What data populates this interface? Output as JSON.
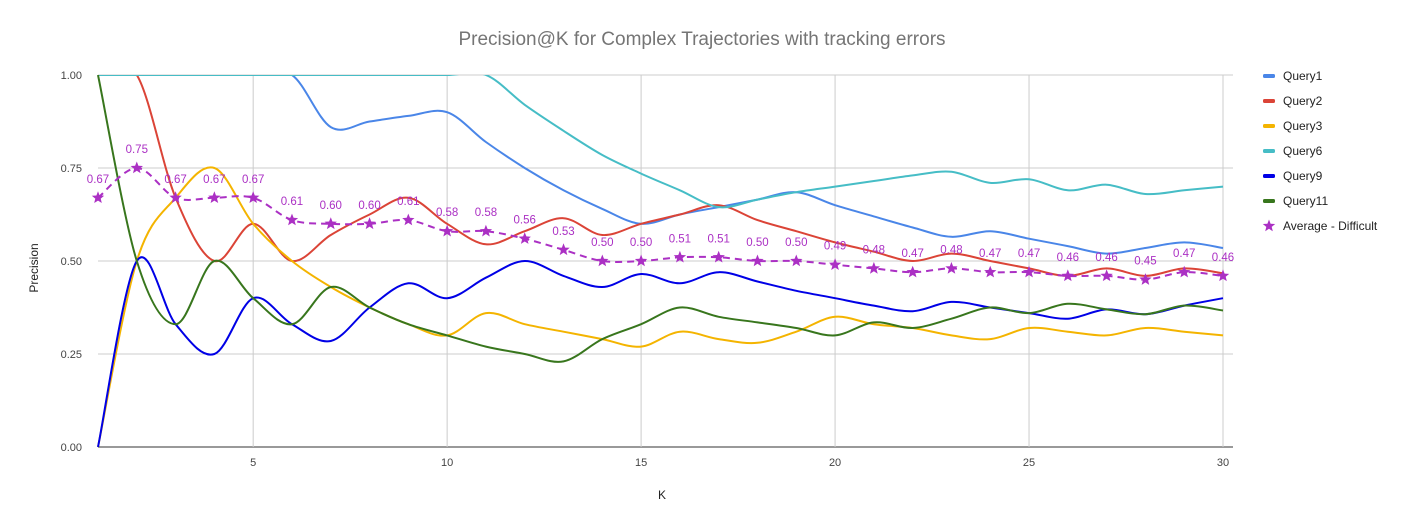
{
  "chart_data": {
    "type": "line",
    "title": "Precision@K for Complex Trajectories with tracking errors",
    "xlabel": "K",
    "ylabel": "Precision",
    "xlim": [
      1,
      30
    ],
    "ylim": [
      0,
      1
    ],
    "x_ticks": [
      "5",
      "10",
      "15",
      "20",
      "25",
      "30"
    ],
    "y_ticks": [
      "0.00",
      "0.25",
      "0.50",
      "0.75",
      "1.00"
    ],
    "grid": true,
    "legend_position": "right",
    "x": [
      1,
      2,
      3,
      4,
      5,
      6,
      7,
      8,
      9,
      10,
      11,
      12,
      13,
      14,
      15,
      16,
      17,
      18,
      19,
      20,
      21,
      22,
      23,
      24,
      25,
      26,
      27,
      28,
      29,
      30
    ],
    "series": [
      {
        "name": "Query1",
        "color": "#4a86e8",
        "style": "solid",
        "values": [
          1.0,
          1.0,
          1.0,
          1.0,
          1.0,
          1.0,
          0.86,
          0.875,
          0.89,
          0.9,
          0.82,
          0.75,
          0.69,
          0.64,
          0.6,
          0.625,
          0.645,
          0.665,
          0.685,
          0.65,
          0.62,
          0.59,
          0.565,
          0.58,
          0.56,
          0.54,
          0.52,
          0.535,
          0.55,
          0.535
        ]
      },
      {
        "name": "Query2",
        "color": "#db4437",
        "style": "solid",
        "values": [
          1.0,
          1.0,
          0.67,
          0.5,
          0.6,
          0.5,
          0.57,
          0.625,
          0.67,
          0.6,
          0.545,
          0.58,
          0.615,
          0.57,
          0.6,
          0.625,
          0.65,
          0.61,
          0.58,
          0.55,
          0.525,
          0.5,
          0.52,
          0.5,
          0.48,
          0.46,
          0.48,
          0.46,
          0.48,
          0.467
        ]
      },
      {
        "name": "Query3",
        "color": "#f4b400",
        "style": "solid",
        "values": [
          0.0,
          0.5,
          0.67,
          0.75,
          0.6,
          0.5,
          0.43,
          0.375,
          0.33,
          0.3,
          0.36,
          0.33,
          0.31,
          0.29,
          0.27,
          0.31,
          0.29,
          0.28,
          0.31,
          0.35,
          0.33,
          0.32,
          0.3,
          0.29,
          0.32,
          0.31,
          0.3,
          0.32,
          0.31,
          0.3
        ]
      },
      {
        "name": "Query6",
        "color": "#46bdc6",
        "style": "solid",
        "values": [
          1.0,
          1.0,
          1.0,
          1.0,
          1.0,
          1.0,
          1.0,
          1.0,
          1.0,
          1.0,
          1.0,
          0.92,
          0.85,
          0.785,
          0.735,
          0.69,
          0.645,
          0.665,
          0.685,
          0.7,
          0.715,
          0.73,
          0.74,
          0.71,
          0.72,
          0.69,
          0.705,
          0.68,
          0.69,
          0.7
        ]
      },
      {
        "name": "Query9",
        "color": "#0000e6",
        "style": "solid",
        "values": [
          0.0,
          0.5,
          0.33,
          0.25,
          0.4,
          0.33,
          0.285,
          0.375,
          0.44,
          0.4,
          0.455,
          0.5,
          0.46,
          0.43,
          0.465,
          0.44,
          0.47,
          0.445,
          0.42,
          0.4,
          0.38,
          0.365,
          0.39,
          0.375,
          0.36,
          0.345,
          0.37,
          0.357,
          0.38,
          0.4
        ]
      },
      {
        "name": "Query11",
        "color": "#38761d",
        "style": "solid",
        "values": [
          1.0,
          0.5,
          0.33,
          0.5,
          0.4,
          0.33,
          0.43,
          0.375,
          0.33,
          0.3,
          0.27,
          0.25,
          0.23,
          0.29,
          0.33,
          0.375,
          0.35,
          0.335,
          0.32,
          0.3,
          0.335,
          0.32,
          0.345,
          0.375,
          0.36,
          0.385,
          0.37,
          0.357,
          0.38,
          0.367
        ]
      },
      {
        "name": "Average - Difficult",
        "color": "#ab30c4",
        "style": "dashed",
        "marker": "star",
        "values": [
          0.67,
          0.75,
          0.67,
          0.67,
          0.67,
          0.61,
          0.6,
          0.6,
          0.61,
          0.58,
          0.58,
          0.56,
          0.53,
          0.5,
          0.5,
          0.51,
          0.51,
          0.5,
          0.5,
          0.49,
          0.48,
          0.47,
          0.48,
          0.47,
          0.47,
          0.46,
          0.46,
          0.45,
          0.47,
          0.46
        ],
        "labels": [
          "0.67",
          "0.75",
          "0.67",
          "0.67",
          "0.67",
          "0.61",
          "0.60",
          "0.60",
          "0.61",
          "0.58",
          "0.58",
          "0.56",
          "0.53",
          "0.50",
          "0.50",
          "0.51",
          "0.51",
          "0.50",
          "0.50",
          "0.49",
          "0.48",
          "0.47",
          "0.48",
          "0.47",
          "0.47",
          "0.46",
          "0.46",
          "0.45",
          "0.47",
          "0.46"
        ]
      }
    ]
  }
}
